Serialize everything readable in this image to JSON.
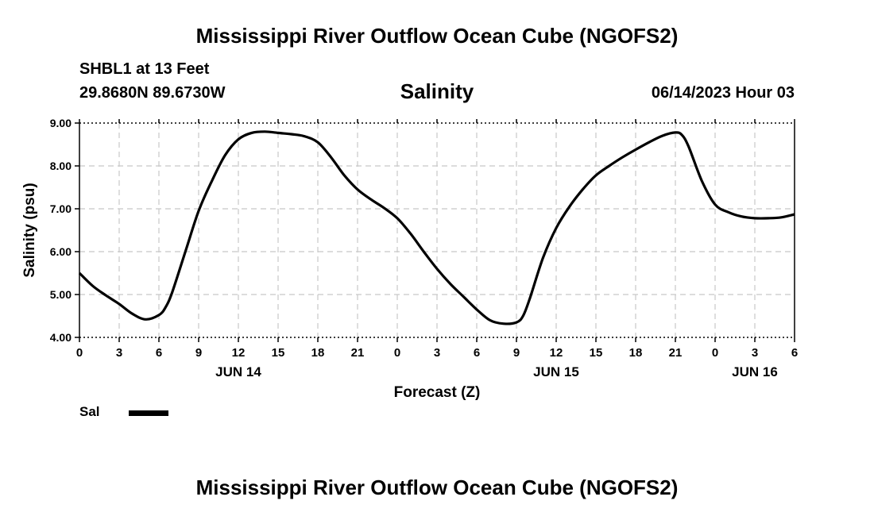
{
  "page_title": "Mississippi River Outflow Ocean Cube (NGOFS2)",
  "station": "SHBL1 at 13 Feet",
  "coordinates": "29.8680N  89.6730W",
  "datetime": "06/14/2023 Hour 03",
  "footer_title": "Mississippi River Outflow Ocean Cube (NGOFS2)",
  "chart_data": {
    "type": "line",
    "title": "Salinity",
    "xlabel": "Forecast (Z)",
    "ylabel": "Salinity (psu)",
    "xlim": [
      0,
      54
    ],
    "ylim": [
      4.0,
      9.0
    ],
    "grid": true,
    "legend_position": "bottom-left",
    "x_ticks": [
      {
        "x": 0,
        "label": "0"
      },
      {
        "x": 3,
        "label": "3"
      },
      {
        "x": 6,
        "label": "6"
      },
      {
        "x": 9,
        "label": "9"
      },
      {
        "x": 12,
        "label": "12"
      },
      {
        "x": 15,
        "label": "15"
      },
      {
        "x": 18,
        "label": "18"
      },
      {
        "x": 21,
        "label": "21"
      },
      {
        "x": 24,
        "label": "0"
      },
      {
        "x": 27,
        "label": "3"
      },
      {
        "x": 30,
        "label": "6"
      },
      {
        "x": 33,
        "label": "9"
      },
      {
        "x": 36,
        "label": "12"
      },
      {
        "x": 39,
        "label": "15"
      },
      {
        "x": 42,
        "label": "18"
      },
      {
        "x": 45,
        "label": "21"
      },
      {
        "x": 48,
        "label": "0"
      },
      {
        "x": 51,
        "label": "3"
      },
      {
        "x": 54,
        "label": "6"
      }
    ],
    "day_labels": [
      {
        "x": 12,
        "label": "JUN 14"
      },
      {
        "x": 36,
        "label": "JUN 15"
      },
      {
        "x": 51,
        "label": "JUN 16"
      }
    ],
    "y_ticks": [
      {
        "y": 4.0,
        "label": "4.00"
      },
      {
        "y": 5.0,
        "label": "5.00"
      },
      {
        "y": 6.0,
        "label": "6.00"
      },
      {
        "y": 7.0,
        "label": "7.00"
      },
      {
        "y": 8.0,
        "label": "8.00"
      },
      {
        "y": 9.0,
        "label": "9.00"
      }
    ],
    "series": [
      {
        "name": "Sal",
        "color": "#000000",
        "x": [
          0,
          1,
          2,
          3,
          4,
          5,
          6,
          6.5,
          7,
          8,
          9,
          10,
          11,
          12,
          13,
          14,
          15,
          16,
          17,
          18,
          19,
          20,
          21,
          22,
          23,
          24,
          25,
          26,
          27,
          28,
          29,
          30,
          31,
          32,
          33,
          33.5,
          34,
          35,
          36,
          37,
          38,
          39,
          40,
          41,
          42,
          43,
          44,
          45,
          45.5,
          46,
          47,
          48,
          49,
          50,
          51,
          52,
          53,
          54
        ],
        "y": [
          5.5,
          5.2,
          4.98,
          4.78,
          4.55,
          4.42,
          4.52,
          4.7,
          5.05,
          6.0,
          6.95,
          7.65,
          8.25,
          8.62,
          8.77,
          8.8,
          8.77,
          8.74,
          8.69,
          8.55,
          8.2,
          7.78,
          7.45,
          7.22,
          7.02,
          6.78,
          6.42,
          6.0,
          5.6,
          5.25,
          4.95,
          4.65,
          4.4,
          4.32,
          4.35,
          4.5,
          4.9,
          5.85,
          6.55,
          7.05,
          7.45,
          7.78,
          8.0,
          8.2,
          8.38,
          8.55,
          8.7,
          8.78,
          8.72,
          8.45,
          7.65,
          7.1,
          6.92,
          6.82,
          6.78,
          6.78,
          6.8,
          6.87
        ]
      }
    ]
  }
}
